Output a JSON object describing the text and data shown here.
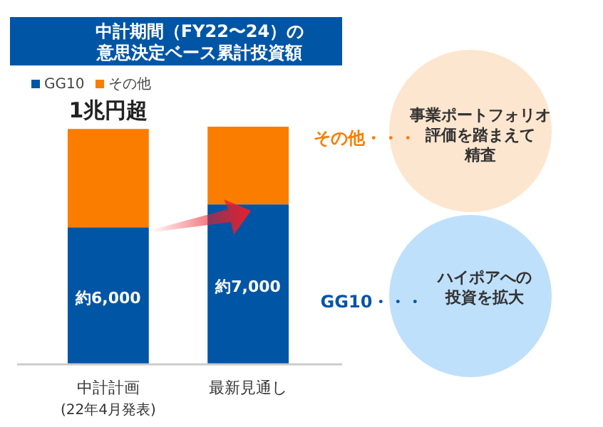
{
  "chart_data": {
    "type": "bar",
    "title": "中計期間（FY22〜24）の",
    "subtitle": "意思決定ベース累計投資額",
    "categories": [
      "中計計画",
      "最新見通し"
    ],
    "stacked": true,
    "legend": "top left",
    "series": [
      {
        "name": "GG10",
        "color": "#0055a5",
        "values": [
          6000,
          7000
        ],
        "value_labels": [
          "約6,000",
          "約7,000"
        ]
      },
      {
        "name": "その他",
        "color": "#fa7d00",
        "values": [
          4300,
          3400
        ]
      }
    ],
    "annotations": [
      "(22年4月発表)",
      {
        "text": "1兆円超",
        "x": "中計計画",
        "y": 10300
      },
      "その他・・・",
      "事業ポートフォリオ",
      "評価を踏まえて",
      "精査",
      "GG10・・・",
      "ハイポアへの",
      "投資を拡大"
    ]
  }
}
